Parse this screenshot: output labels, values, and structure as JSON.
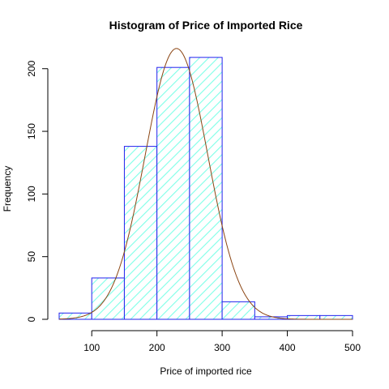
{
  "chart_data": {
    "type": "bar",
    "title": "Histogram of Price of Imported Rice",
    "xlabel": "Price of imported rice",
    "ylabel": "Frequency",
    "bins": [
      {
        "start": 50,
        "end": 100,
        "count": 5
      },
      {
        "start": 100,
        "end": 150,
        "count": 33
      },
      {
        "start": 150,
        "end": 200,
        "count": 138
      },
      {
        "start": 200,
        "end": 250,
        "count": 201
      },
      {
        "start": 250,
        "end": 300,
        "count": 209
      },
      {
        "start": 300,
        "end": 350,
        "count": 14
      },
      {
        "start": 350,
        "end": 400,
        "count": 2
      },
      {
        "start": 400,
        "end": 450,
        "count": 3
      },
      {
        "start": 450,
        "end": 500,
        "count": 3
      }
    ],
    "xlim": [
      50,
      500
    ],
    "ylim": [
      0,
      216
    ],
    "xticks": [
      100,
      200,
      300,
      400,
      500
    ],
    "yticks": [
      0,
      50,
      100,
      150,
      200
    ],
    "density_curve": {
      "type": "normal",
      "mean": 230,
      "sd": 48,
      "scale": 26000
    },
    "colors": {
      "bar_border": "#2222ee",
      "bar_hatch": "#7fffe8",
      "curve": "#8b4513"
    },
    "grid": false,
    "legend": "none"
  }
}
